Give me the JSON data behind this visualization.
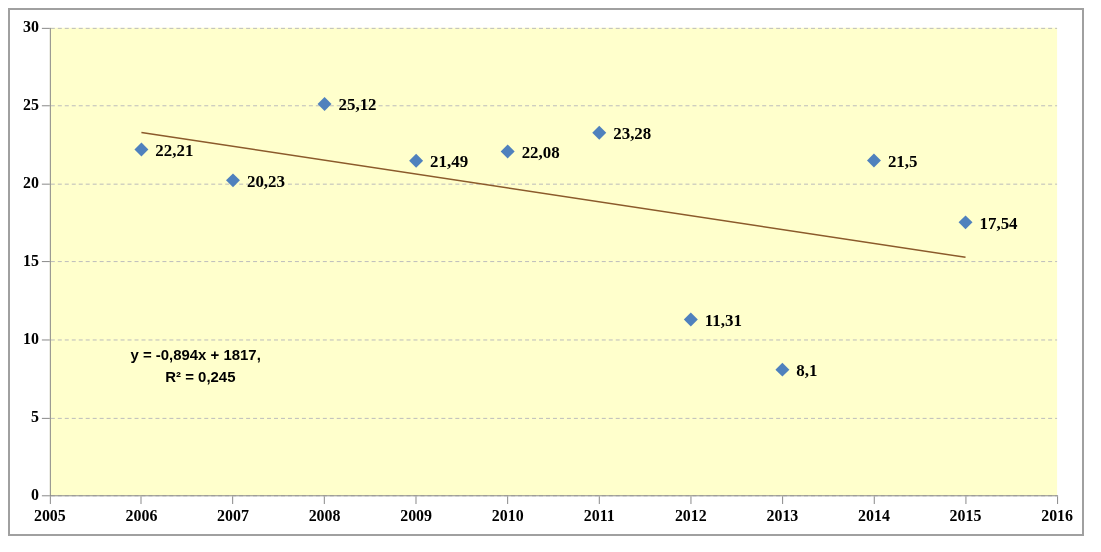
{
  "chart_data": {
    "type": "scatter",
    "x": [
      2006,
      2007,
      2008,
      2009,
      2010,
      2011,
      2012,
      2013,
      2014,
      2015
    ],
    "series": [
      {
        "color": "#4f81bd",
        "marker": "diamond",
        "values": [
          22.21,
          20.23,
          25.12,
          21.49,
          22.08,
          23.28,
          11.31,
          8.1,
          21.5,
          17.54
        ],
        "value_labels": [
          "22,21",
          "20,23",
          "25,12",
          "21,49",
          "22,08",
          "23,28",
          "11,31",
          "8,1",
          "21,5",
          "17,54"
        ]
      },
      {
        "type": "line",
        "color": "#8b5a2b",
        "marker": "none",
        "line_style": "solid",
        "x": [
          2006,
          2015
        ],
        "values": [
          23.3,
          15.3
        ]
      }
    ],
    "annotations": [
      "y = -0,894x + 1817,",
      "R² = 0,245"
    ],
    "xlim": [
      2005,
      2016
    ],
    "xticks": [
      2005,
      2006,
      2007,
      2008,
      2009,
      2010,
      2011,
      2012,
      2013,
      2014,
      2015,
      2016
    ],
    "ylim": [
      0,
      30
    ],
    "yticks": [
      0,
      5,
      10,
      15,
      20,
      25,
      30
    ],
    "grid": "y",
    "legend": false
  }
}
